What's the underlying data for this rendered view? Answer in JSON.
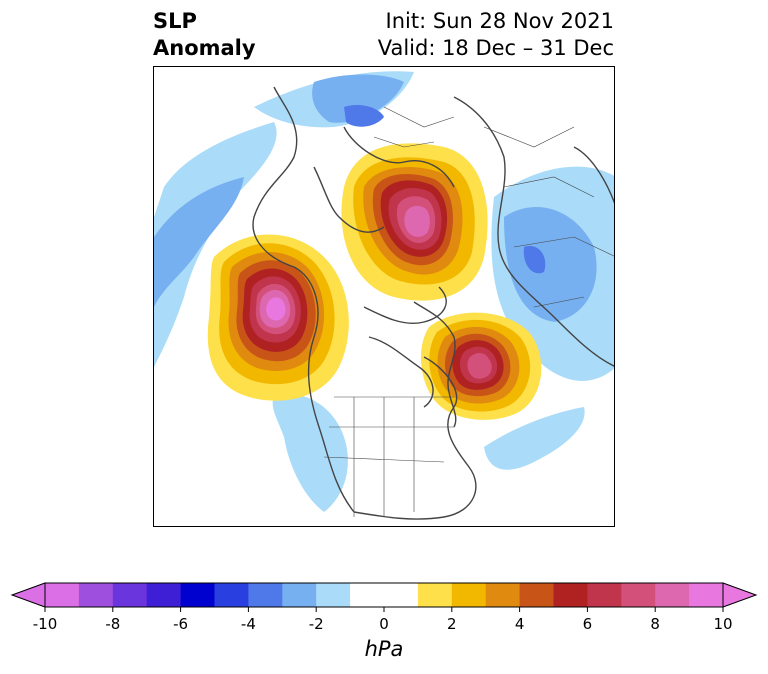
{
  "title": {
    "left_line1": "SLP",
    "left_line2": "Anomaly",
    "right_line1": "Init: Sun 28 Nov 2021",
    "right_line2": "Valid: 18 Dec – 31 Dec"
  },
  "colorbar": {
    "unit": "hPa",
    "ticks": [
      "-10",
      "-8",
      "-6",
      "-4",
      "-2",
      "0",
      "2",
      "4",
      "6",
      "8",
      "10"
    ],
    "colors": [
      "#da6fe6",
      "#9e4fde",
      "#6a35dc",
      "#3f1fd6",
      "#0000cf",
      "#2a3fdf",
      "#4f78e8",
      "#77b0f0",
      "#aadcfa",
      "#ffffff",
      "#ffffff",
      "#fde04a",
      "#f2b800",
      "#e08a10",
      "#c85418",
      "#b02222",
      "#c0344c",
      "#d2507a",
      "#dd68b0",
      "#e878e0"
    ],
    "under_color": "#da6fe6",
    "over_color": "#e878e0"
  }
}
